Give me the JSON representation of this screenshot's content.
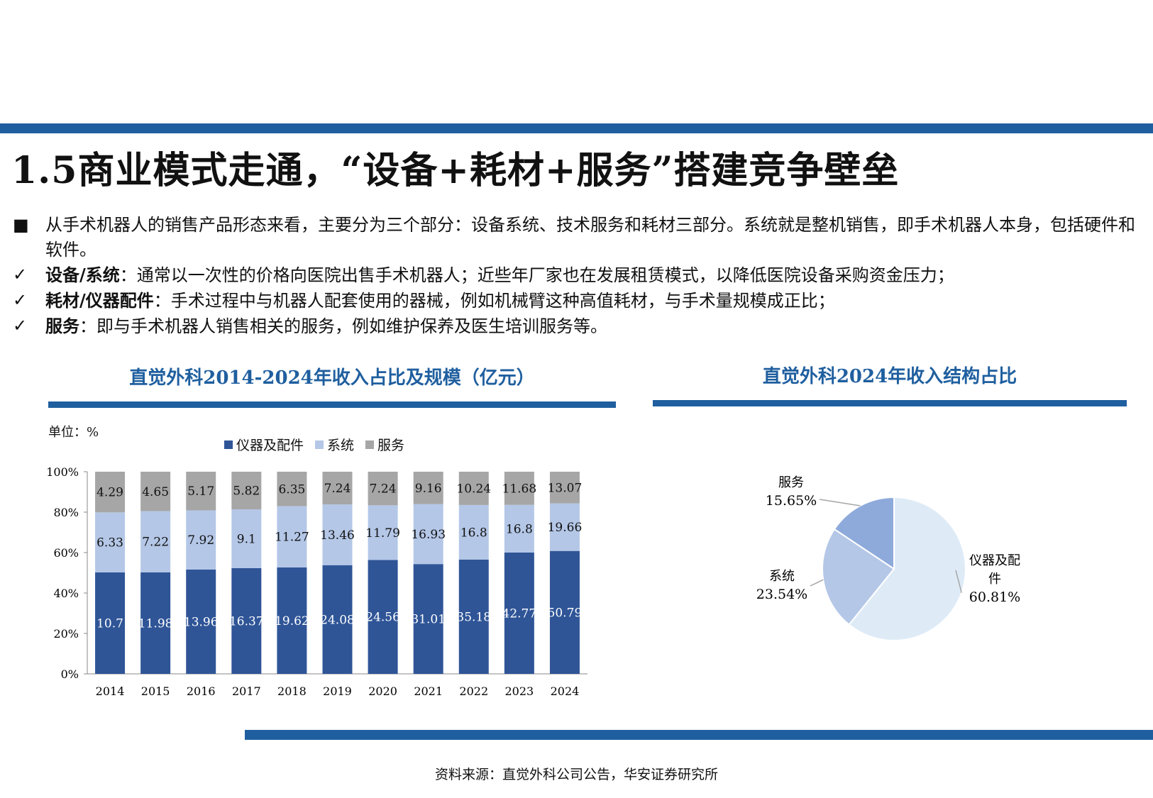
{
  "page": {
    "title": "1.5商业模式走通，“设备+耗材+服务”搭建竞争壁垒",
    "bullets": [
      {
        "mark": "■",
        "bold": "",
        "text": "从手术机器人的销售产品形态来看，主要分为三个部分：设备系统、技术服务和耗材三部分。系统就是整机销售，即手术机器人本身，包括硬件和软件。"
      },
      {
        "mark": "✓",
        "bold": "设备/系统",
        "text": "：通常以一次性的价格向医院出售手术机器人；近些年厂家也在发展租赁模式，以降低医院设备采购资金压力；"
      },
      {
        "mark": "✓",
        "bold": "耗材/仪器配件",
        "text": "：手术过程中与机器人配套使用的器械，例如机械臂这种高值耗材，与手术量规模成正比；"
      },
      {
        "mark": "✓",
        "bold": "服务",
        "text": "：即与手术机器人销售相关的服务，例如维护保养及医生培训服务等。"
      }
    ],
    "source": "资料来源：直觉外科公司公告，华安证券研究所"
  },
  "colors": {
    "brand": "#1f5f9f",
    "instruments": "#2f5597",
    "systems": "#b4c7e7",
    "services": "#a6a6a6"
  },
  "chart_data": [
    {
      "type": "bar",
      "title": "直觉外科2014-2024年收入占比及规模（亿元）",
      "unit_label": "单位：%",
      "stacked": true,
      "categories": [
        "2014",
        "2015",
        "2016",
        "2017",
        "2018",
        "2019",
        "2020",
        "2021",
        "2022",
        "2023",
        "2024"
      ],
      "series": [
        {
          "name": "仪器及配件",
          "values": [
            10.7,
            11.98,
            13.96,
            16.37,
            19.62,
            24.08,
            24.56,
            31.01,
            35.18,
            42.77,
            50.79
          ]
        },
        {
          "name": "系统",
          "values": [
            6.33,
            7.22,
            7.92,
            9.1,
            11.27,
            13.46,
            11.79,
            16.93,
            16.8,
            16.8,
            19.66
          ]
        },
        {
          "name": "服务",
          "values": [
            4.29,
            4.65,
            5.17,
            5.82,
            6.35,
            7.24,
            7.24,
            9.16,
            10.24,
            11.68,
            13.07
          ]
        }
      ],
      "yticks": [
        "0%",
        "20%",
        "40%",
        "60%",
        "80%",
        "100%"
      ],
      "ylim": [
        0,
        100
      ],
      "legend": "top"
    },
    {
      "type": "pie",
      "title": "直觉外科2024年收入结构占比",
      "slices": [
        {
          "name": "仪器及配件",
          "value": 60.81,
          "label": "60.81%"
        },
        {
          "name": "系统",
          "value": 23.54,
          "label": "23.54%"
        },
        {
          "name": "服务",
          "value": 15.65,
          "label": "15.65%"
        }
      ],
      "colors": [
        "#deebf7",
        "#b4c7e7",
        "#8eaadb"
      ]
    }
  ]
}
